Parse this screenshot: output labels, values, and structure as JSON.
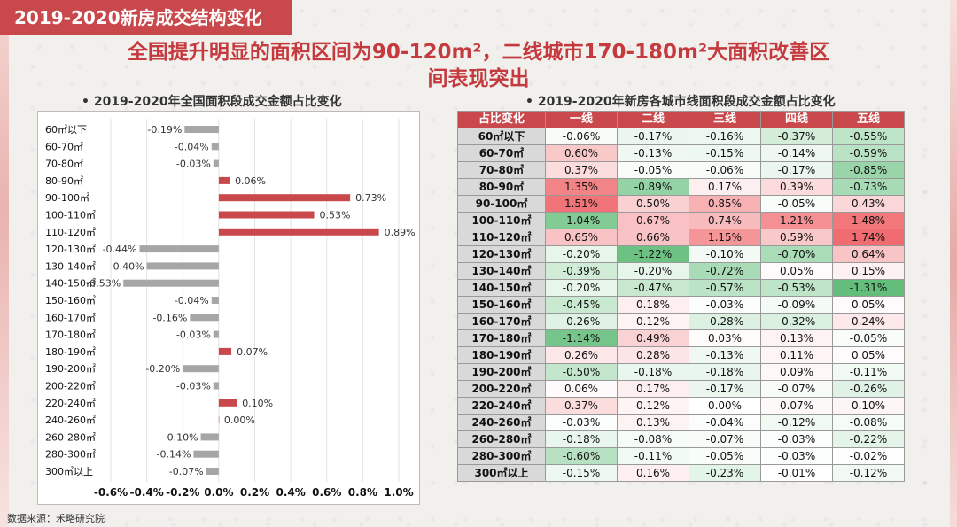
{
  "slide_title": "2019-2020新房成交结构变化",
  "headline_line1": "全国提升明显的面积区间为90-120m²，二线城市170-180m²大面积改善区",
  "headline_line2": "间表现突出",
  "source": "数据来源：禾略研究院",
  "colors": {
    "accent": "#c9484c",
    "negative_bar": "#a6a6a6",
    "positive_bar": "#c9484c"
  },
  "chart_data": [
    {
      "type": "bar",
      "orientation": "horizontal",
      "title": "2019-2020年全国面积段成交金额占比变化",
      "categories": [
        "60㎡以下",
        "60-70㎡",
        "70-80㎡",
        "80-90㎡",
        "90-100㎡",
        "100-110㎡",
        "110-120㎡",
        "120-130㎡",
        "130-140㎡",
        "140-150㎡",
        "150-160㎡",
        "160-170㎡",
        "170-180㎡",
        "180-190㎡",
        "190-200㎡",
        "200-220㎡",
        "220-240㎡",
        "240-260㎡",
        "260-280㎡",
        "280-300㎡",
        "300㎡以上"
      ],
      "values": [
        -0.19,
        -0.04,
        -0.03,
        0.06,
        0.73,
        0.53,
        0.89,
        -0.44,
        -0.4,
        -0.53,
        -0.04,
        -0.16,
        -0.03,
        0.07,
        -0.2,
        -0.03,
        0.1,
        0.0,
        -0.1,
        -0.14,
        -0.07
      ],
      "data_labels": [
        "-0.19%",
        "-0.04%",
        "-0.03%",
        "0.06%",
        "0.73%",
        "0.53%",
        "0.89%",
        "-0.44%",
        "-0.40%",
        "-0.53%",
        "-0.04%",
        "-0.16%",
        "-0.03%",
        "0.07%",
        "-0.20%",
        "-0.03%",
        "0.10%",
        "0.00%",
        "-0.10%",
        "-0.14%",
        "-0.07%"
      ],
      "xlim": [
        -0.6,
        1.0
      ],
      "xticks": [
        "-0.6%",
        "-0.4%",
        "-0.2%",
        "0.0%",
        "0.2%",
        "0.4%",
        "0.6%",
        "0.8%",
        "1.0%"
      ],
      "xtick_values": [
        -0.6,
        -0.4,
        -0.2,
        0.0,
        0.2,
        0.4,
        0.6,
        0.8,
        1.0
      ],
      "grid": "vertical"
    },
    {
      "type": "table",
      "title": "2019-2020年新房各城市线面积段成交金额占比变化",
      "corner": "占比变化",
      "columns": [
        "一线",
        "二线",
        "三线",
        "四线",
        "五线"
      ],
      "rows": [
        {
          "label": "60㎡以下",
          "values": [
            -0.06,
            -0.17,
            -0.16,
            -0.37,
            -0.55
          ]
        },
        {
          "label": "60-70㎡",
          "values": [
            0.6,
            -0.13,
            -0.15,
            -0.14,
            -0.59
          ]
        },
        {
          "label": "70-80㎡",
          "values": [
            0.37,
            -0.05,
            -0.06,
            -0.17,
            -0.85
          ]
        },
        {
          "label": "80-90㎡",
          "values": [
            1.35,
            -0.89,
            0.17,
            0.39,
            -0.73
          ]
        },
        {
          "label": "90-100㎡",
          "values": [
            1.51,
            0.5,
            0.85,
            -0.05,
            0.43
          ]
        },
        {
          "label": "100-110㎡",
          "values": [
            -1.04,
            0.67,
            0.74,
            1.21,
            1.48
          ]
        },
        {
          "label": "110-120㎡",
          "values": [
            0.65,
            0.66,
            1.15,
            0.59,
            1.74
          ]
        },
        {
          "label": "120-130㎡",
          "values": [
            -0.2,
            -1.22,
            -0.1,
            -0.7,
            0.64
          ]
        },
        {
          "label": "130-140㎡",
          "values": [
            -0.39,
            -0.2,
            -0.72,
            0.05,
            0.15
          ]
        },
        {
          "label": "140-150㎡",
          "values": [
            -0.2,
            -0.47,
            -0.57,
            -0.53,
            -1.31
          ]
        },
        {
          "label": "150-160㎡",
          "values": [
            -0.45,
            0.18,
            -0.03,
            -0.09,
            0.05
          ]
        },
        {
          "label": "160-170㎡",
          "values": [
            -0.26,
            0.12,
            -0.28,
            -0.32,
            0.24
          ]
        },
        {
          "label": "170-180㎡",
          "values": [
            -1.14,
            0.49,
            0.03,
            0.13,
            -0.05
          ]
        },
        {
          "label": "180-190㎡",
          "values": [
            0.26,
            0.28,
            -0.13,
            0.11,
            0.05
          ]
        },
        {
          "label": "190-200㎡",
          "values": [
            -0.5,
            -0.18,
            -0.18,
            0.09,
            -0.11
          ]
        },
        {
          "label": "200-220㎡",
          "values": [
            0.06,
            0.17,
            -0.17,
            -0.07,
            -0.26
          ]
        },
        {
          "label": "220-240㎡",
          "values": [
            0.37,
            0.12,
            0.0,
            0.07,
            0.1
          ]
        },
        {
          "label": "240-260㎡",
          "values": [
            -0.03,
            0.13,
            -0.04,
            -0.12,
            -0.08
          ]
        },
        {
          "label": "260-280㎡",
          "values": [
            -0.18,
            -0.08,
            -0.07,
            -0.03,
            -0.22
          ]
        },
        {
          "label": "280-300㎡",
          "values": [
            -0.6,
            -0.11,
            -0.05,
            -0.03,
            -0.02
          ]
        },
        {
          "label": "300㎡以上",
          "values": [
            -0.15,
            0.16,
            -0.23,
            -0.01,
            -0.12
          ]
        }
      ]
    }
  ]
}
